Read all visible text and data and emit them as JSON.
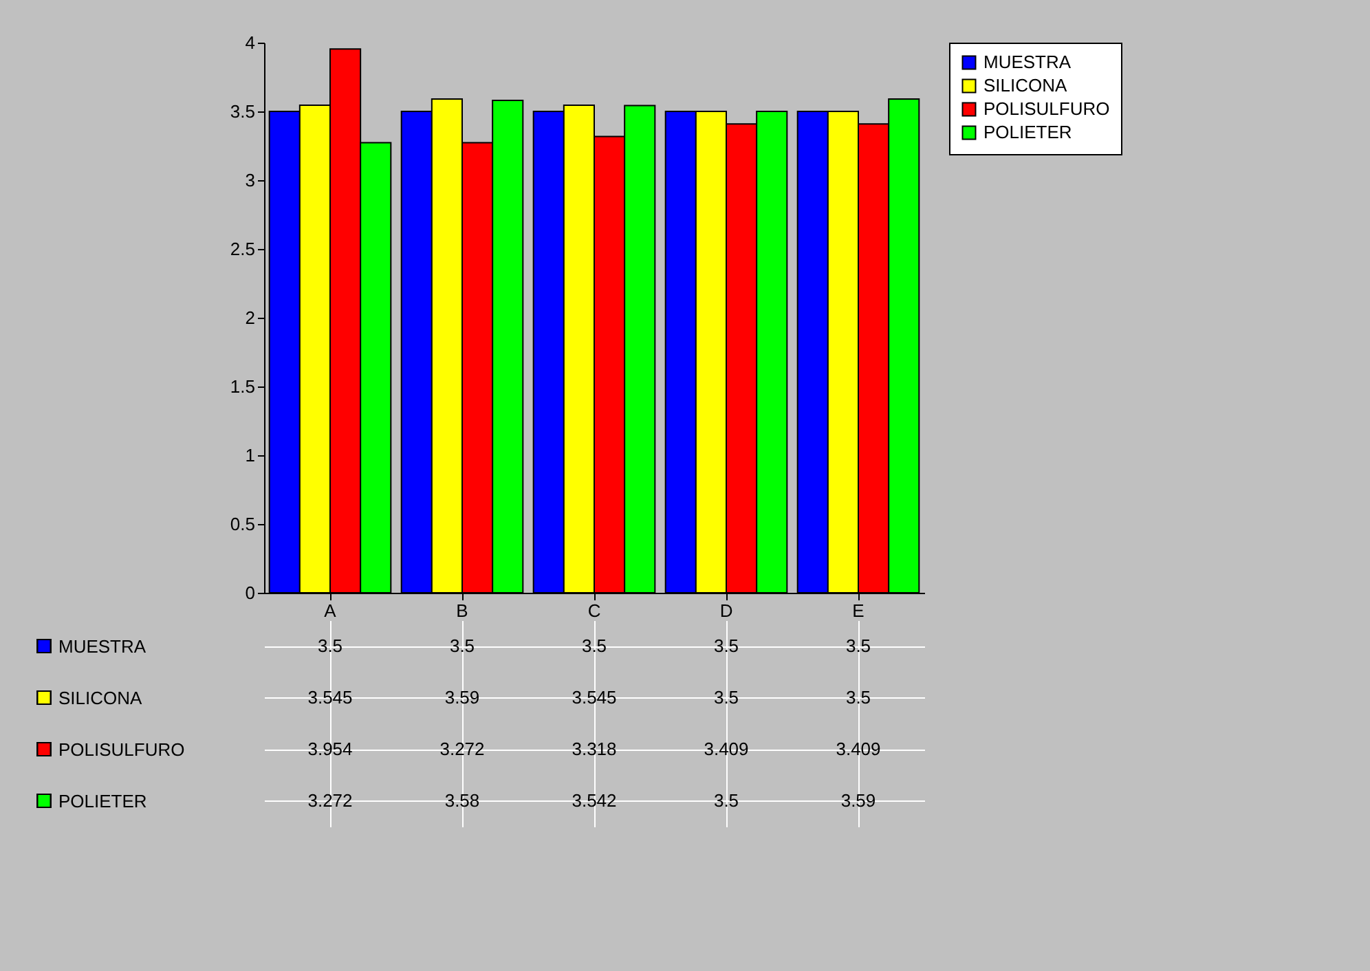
{
  "chart_data": {
    "type": "bar",
    "categories": [
      "A",
      "B",
      "C",
      "D",
      "E"
    ],
    "series": [
      {
        "name": "MUESTRA",
        "color": "#0000ff",
        "values": [
          3.5,
          3.5,
          3.5,
          3.5,
          3.5
        ]
      },
      {
        "name": "SILICONA",
        "color": "#ffff00",
        "values": [
          3.545,
          3.59,
          3.545,
          3.5,
          3.5
        ]
      },
      {
        "name": "POLISULFURO",
        "color": "#ff0000",
        "values": [
          3.954,
          3.272,
          3.318,
          3.409,
          3.409
        ]
      },
      {
        "name": "POLIETER",
        "color": "#00ff00",
        "values": [
          3.272,
          3.58,
          3.542,
          3.5,
          3.59
        ]
      }
    ],
    "ylim": [
      0,
      4
    ],
    "yticks": [
      0,
      0.5,
      1,
      1.5,
      2,
      2.5,
      3,
      3.5,
      4
    ],
    "grid": false,
    "legend": "right",
    "data_labels": true
  }
}
